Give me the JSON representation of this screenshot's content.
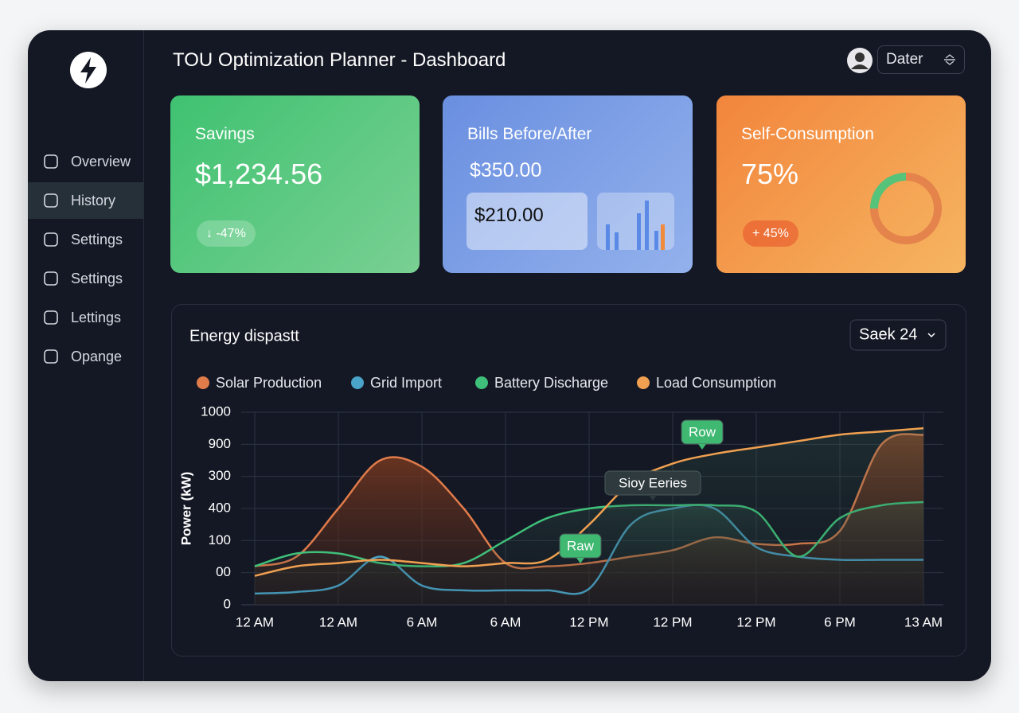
{
  "header": {
    "title": "TOU Optimization Planner - Dashboard",
    "user": "Dater"
  },
  "sidebar": {
    "items": [
      "Overview",
      "History",
      "Settings",
      "Settings",
      "Lettings",
      "Opange"
    ],
    "active": 1
  },
  "cards": [
    {
      "title": "Savings",
      "value": "$1,234.56",
      "badge": "↓ -47%"
    },
    {
      "title": "Bills Before/After",
      "value": "$350.00",
      "after": "$210.00"
    },
    {
      "title": "Self-Consumption",
      "value": "75%",
      "badge": "+ 45%"
    }
  ],
  "chart_data": {
    "type": "line",
    "title": "Energy dispastt",
    "control": "Saek 24",
    "y_label": "Power (kW)",
    "categories": [
      "12 AM",
      null,
      "12 AM",
      null,
      "6 AM",
      null,
      "6 AM",
      null,
      "12 PM",
      null,
      "12 PM",
      null,
      "12 PM",
      null,
      "6 PM",
      null,
      "13 AM"
    ],
    "series": [
      {
        "name": "Solar Production",
        "color": "#e07b4a",
        "values": [
          1.2,
          1.5,
          3.0,
          4.5,
          4.3,
          3.0,
          1.3,
          1.2,
          1.3,
          1.5,
          1.7,
          2.1,
          1.9,
          1.9,
          2.3,
          5.0,
          5.3
        ]
      },
      {
        "name": "Grid Import",
        "color": "#4aa3c8",
        "values": [
          0.35,
          0.4,
          0.6,
          1.5,
          0.6,
          0.45,
          0.45,
          0.45,
          0.5,
          2.5,
          3.0,
          3.0,
          1.8,
          1.5,
          1.4,
          1.4,
          1.4
        ]
      },
      {
        "name": "Battery Discharge",
        "color": "#3fc07a",
        "values": [
          1.2,
          1.6,
          1.6,
          1.3,
          1.2,
          1.3,
          2.0,
          2.7,
          3.0,
          3.1,
          3.1,
          3.1,
          2.9,
          1.5,
          2.7,
          3.1,
          3.2
        ]
      },
      {
        "name": "Load Consumption",
        "color": "#f0a050",
        "values": [
          0.9,
          1.2,
          1.3,
          1.4,
          1.3,
          1.2,
          1.3,
          1.4,
          2.5,
          3.8,
          4.4,
          4.7,
          4.9,
          5.1,
          5.3,
          5.4,
          5.5
        ]
      }
    ],
    "ylim": [
      0,
      6
    ],
    "yticks": [
      {
        "value": 0,
        "label": "0"
      },
      {
        "value": 1,
        "label": "00"
      },
      {
        "value": 2,
        "label": "100"
      },
      {
        "value": 3,
        "label": "400"
      },
      {
        "value": 4,
        "label": "300"
      },
      {
        "value": 5,
        "label": "900"
      },
      {
        "value": 6,
        "label": "1000"
      }
    ],
    "grid": true,
    "annotations": [
      "Row",
      "Sioy Eeries",
      "Raw"
    ]
  }
}
